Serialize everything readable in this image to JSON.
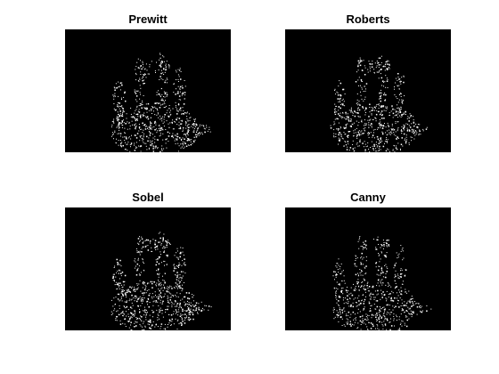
{
  "figure": {
    "background": "#ffffff",
    "panels": [
      {
        "title": "Prewitt"
      },
      {
        "title": "Roberts"
      },
      {
        "title": "Sobel"
      },
      {
        "title": "Canny"
      }
    ],
    "image_background": "#000000",
    "edge_color": "#ffffff"
  }
}
